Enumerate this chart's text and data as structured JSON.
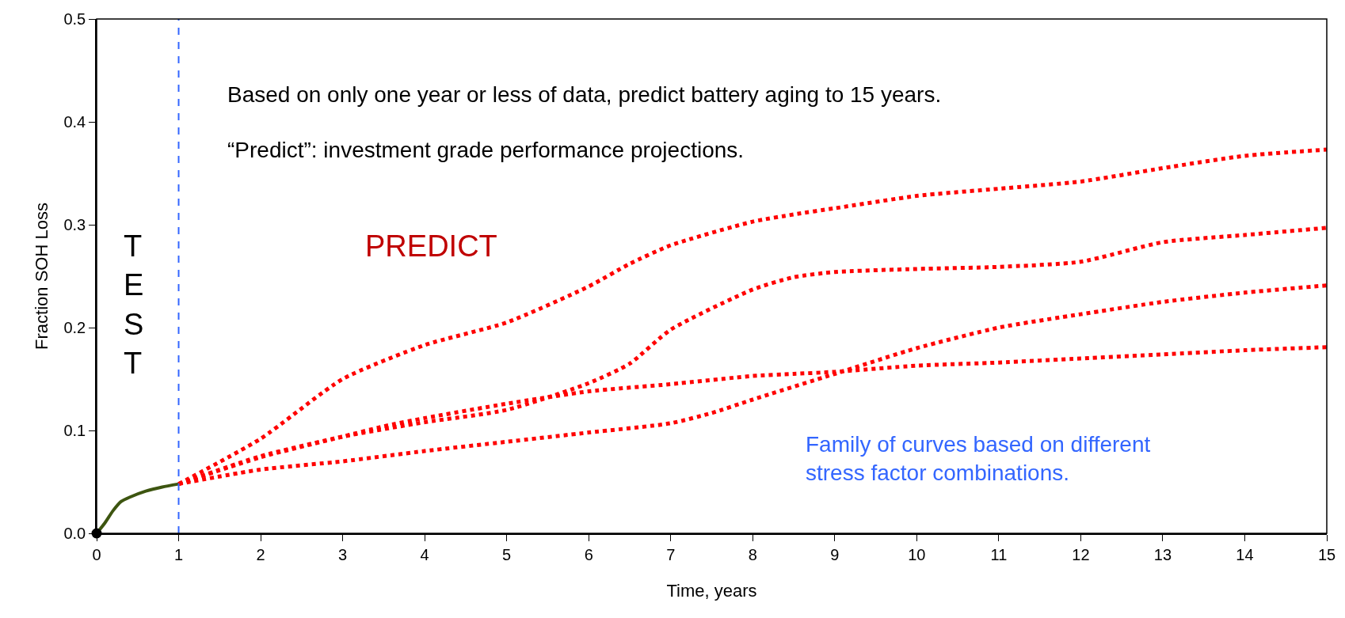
{
  "chart_data": {
    "type": "line",
    "xlabel": "Time, years",
    "ylabel": "Fraction SOH Loss",
    "xlim": [
      0,
      15
    ],
    "xticks": [
      0,
      1,
      2,
      3,
      4,
      5,
      6,
      7,
      8,
      9,
      10,
      11,
      12,
      13,
      14,
      15
    ],
    "ylim": [
      0,
      0.5
    ],
    "yticks": [
      {
        "value": 0,
        "label": "0.0"
      },
      0.1,
      0.2,
      0.3,
      0.4,
      0.5
    ],
    "grid": false,
    "marker": "none",
    "series": [
      {
        "color": "#3d5510",
        "line_style": "solid",
        "x": [
          0,
          0.1,
          0.2,
          0.3,
          0.4,
          0.6,
          0.8,
          1
        ],
        "values": [
          0,
          0.01,
          0.022,
          0.031,
          0.035,
          0.041,
          0.045,
          0.048
        ]
      },
      {
        "color": "#ff0000",
        "line_style": "dotted",
        "x": [
          1,
          2,
          3,
          4,
          5,
          6,
          6.5,
          7,
          8,
          8.5,
          9,
          10,
          11,
          12,
          13,
          14,
          15
        ],
        "values": [
          0.048,
          0.092,
          0.15,
          0.183,
          0.205,
          0.24,
          0.262,
          0.28,
          0.303,
          0.31,
          0.316,
          0.328,
          0.335,
          0.342,
          0.355,
          0.367,
          0.373
        ]
      },
      {
        "color": "#ff0000",
        "line_style": "dotted",
        "x": [
          1,
          2,
          3,
          4,
          5,
          6,
          6.5,
          7,
          8,
          8.5,
          9,
          10,
          11,
          12,
          13,
          14,
          15
        ],
        "values": [
          0.048,
          0.075,
          0.094,
          0.108,
          0.12,
          0.146,
          0.165,
          0.198,
          0.237,
          0.249,
          0.254,
          0.257,
          0.259,
          0.264,
          0.283,
          0.29,
          0.297
        ]
      },
      {
        "color": "#ff0000",
        "line_style": "dotted",
        "x": [
          1,
          2,
          3,
          3.5,
          4,
          5,
          6,
          7,
          8,
          8.5,
          9,
          10,
          11,
          12,
          13,
          14,
          15
        ],
        "values": [
          0.048,
          0.074,
          0.094,
          0.104,
          0.112,
          0.126,
          0.138,
          0.145,
          0.153,
          0.155,
          0.157,
          0.163,
          0.166,
          0.17,
          0.174,
          0.178,
          0.181
        ]
      },
      {
        "color": "#ff0000",
        "line_style": "dotted",
        "x": [
          1,
          2,
          3,
          4,
          5,
          6,
          7,
          7.5,
          8,
          9,
          10,
          11,
          12,
          13,
          14,
          15
        ],
        "values": [
          0.048,
          0.062,
          0.07,
          0.08,
          0.089,
          0.098,
          0.107,
          0.117,
          0.13,
          0.155,
          0.18,
          0.2,
          0.213,
          0.225,
          0.234,
          0.241
        ]
      },
      {
        "type": "scatter",
        "color": "#000000",
        "marker": "circle",
        "x": [
          0
        ],
        "values": [
          0
        ]
      }
    ],
    "ref_lines": [
      {
        "axis": "x",
        "value": 1,
        "color": "#3366ff",
        "line_style": "dashed"
      }
    ],
    "annotations": [
      "Based on only one year or less of data, predict battery aging to 15 years.",
      "“Predict”: investment grade performance projections.",
      "TEST",
      "PREDICT",
      "Family of curves based on different stress factor combinations."
    ]
  }
}
